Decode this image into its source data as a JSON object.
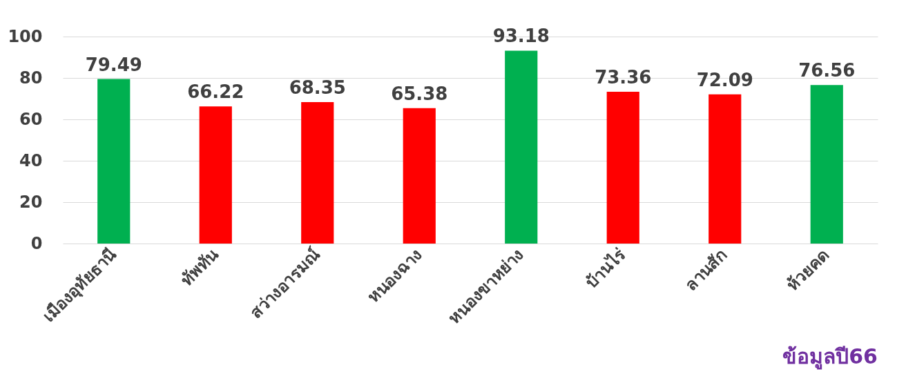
{
  "chart_data": {
    "type": "bar",
    "categories": [
      "เมืองอุทัยธานี",
      "ทัพทัน",
      "สว่างอารมณ์",
      "หนองฉาง",
      "หนองขาหย่าง",
      "บ้านไร่",
      "ลานสัก",
      "ห้วยคด"
    ],
    "values": [
      79.49,
      66.22,
      68.35,
      65.38,
      93.18,
      73.36,
      72.09,
      76.56
    ],
    "colors": [
      "#00b050",
      "#ff0000",
      "#ff0000",
      "#ff0000",
      "#00b050",
      "#ff0000",
      "#ff0000",
      "#00b050"
    ],
    "ylim": [
      0,
      100
    ],
    "yticks": [
      0,
      20,
      40,
      60,
      80,
      100
    ],
    "grid": "y",
    "data_labels": true,
    "annotations": [
      "ข้อมูลปี66"
    ]
  }
}
